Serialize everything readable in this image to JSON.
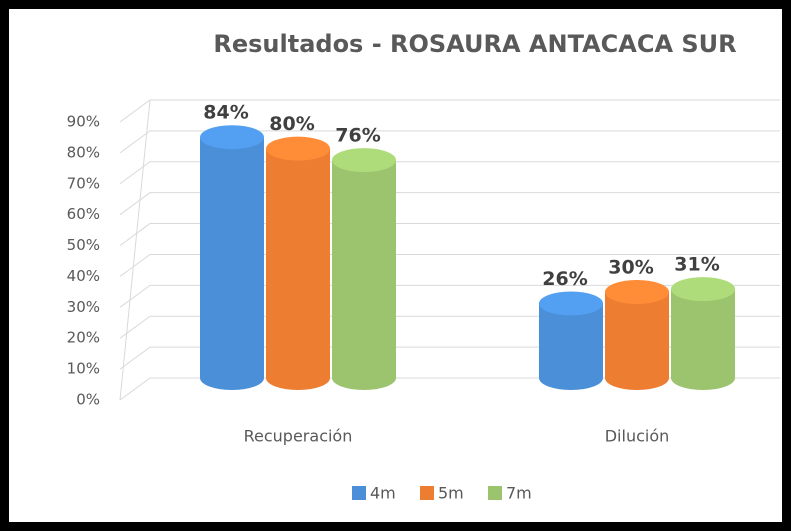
{
  "chart_data": {
    "type": "bar3d",
    "title": "Resultados - ROSAURA ANTACACA SUR",
    "categories": [
      "Recuperación",
      "Dilución"
    ],
    "series": [
      {
        "name": "4m",
        "color": "#4a8fd8",
        "values": [
          84,
          26
        ],
        "value_labels": [
          "84%",
          "26%"
        ]
      },
      {
        "name": "5m",
        "color": "#ed7d31",
        "values": [
          80,
          30
        ],
        "value_labels": [
          "80%",
          "30%"
        ]
      },
      {
        "name": "7m",
        "color": "#9cc46e",
        "values": [
          76,
          31
        ],
        "value_labels": [
          "76%",
          "31%"
        ]
      }
    ],
    "ylim": [
      0,
      90
    ],
    "yticks": [
      {
        "value": 0,
        "label": "0%"
      },
      {
        "value": 10,
        "label": "10%"
      },
      {
        "value": 20,
        "label": "20%"
      },
      {
        "value": 30,
        "label": "30%"
      },
      {
        "value": 40,
        "label": "40%"
      },
      {
        "value": 50,
        "label": "50%"
      },
      {
        "value": 60,
        "label": "60%"
      },
      {
        "value": 70,
        "label": "70%"
      },
      {
        "value": 80,
        "label": "80%"
      },
      {
        "value": 90,
        "label": "90%"
      }
    ],
    "grid": true,
    "legend": "bottom"
  }
}
